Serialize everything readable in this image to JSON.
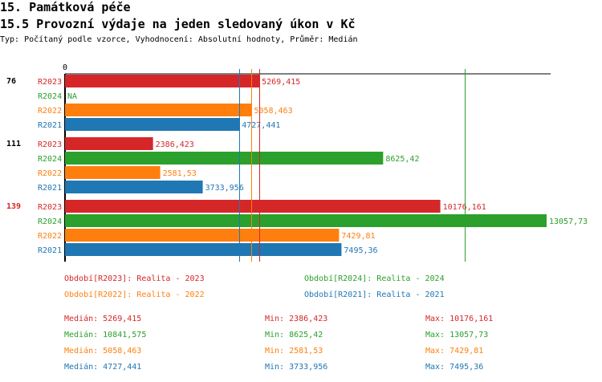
{
  "header": {
    "title": "15. Památková péče",
    "subtitle": "15.5 Provozní výdaje na jeden sledovaný úkon v Kč",
    "info": "Typ: Počítaný podle vzorce, Vyhodnocení: Absolutní hodnoty, Průměr: Medián"
  },
  "chart_data": {
    "type": "bar",
    "orientation": "horizontal",
    "xlim": [
      0,
      13057.73
    ],
    "x_tick_labels": [
      "0"
    ],
    "categories": [
      "76",
      "111",
      "139"
    ],
    "highlighted_category": "139",
    "series": [
      {
        "name": "R2023",
        "color": "#d62728",
        "values": [
          5269.415,
          2386.423,
          10176.161
        ],
        "labels": [
          "5269,415",
          "2386,423",
          "10176,161"
        ],
        "median": 5269.415
      },
      {
        "name": "R2024",
        "color": "#2ca02c",
        "values": [
          null,
          8625.42,
          13057.73
        ],
        "labels": [
          "NA",
          "8625,42",
          "13057,73"
        ],
        "median": 10841.575
      },
      {
        "name": "R2022",
        "color": "#ff7f0e",
        "values": [
          5058.463,
          2581.53,
          7429.81
        ],
        "labels": [
          "5058,463",
          "2581,53",
          "7429,81"
        ],
        "median": 5058.463
      },
      {
        "name": "R2021",
        "color": "#1f77b4",
        "values": [
          4727.441,
          3733.956,
          7495.36
        ],
        "labels": [
          "4727,441",
          "3733,956",
          "7495,36"
        ],
        "median": 4727.441
      }
    ]
  },
  "legend": [
    {
      "text": "Období[R2023]: Realita - 2023",
      "color": "#d62728"
    },
    {
      "text": "Období[R2024]: Realita - 2024",
      "color": "#2ca02c"
    },
    {
      "text": "Období[R2022]: Realita - 2022",
      "color": "#ff7f0e"
    },
    {
      "text": "Období[R2021]: Realita - 2021",
      "color": "#1f77b4"
    }
  ],
  "stats": [
    {
      "median": "Medián: 5269,415",
      "min": "Min: 2386,423",
      "max": "Max: 10176,161",
      "color": "#d62728"
    },
    {
      "median": "Medián: 10841,575",
      "min": "Min: 8625,42",
      "max": "Max: 13057,73",
      "color": "#2ca02c"
    },
    {
      "median": "Medián: 5058,463",
      "min": "Min: 2581,53",
      "max": "Max: 7429,81",
      "color": "#ff7f0e"
    },
    {
      "median": "Medián: 4727,441",
      "min": "Min: 3733,956",
      "max": "Max: 7495,36",
      "color": "#1f77b4"
    }
  ]
}
